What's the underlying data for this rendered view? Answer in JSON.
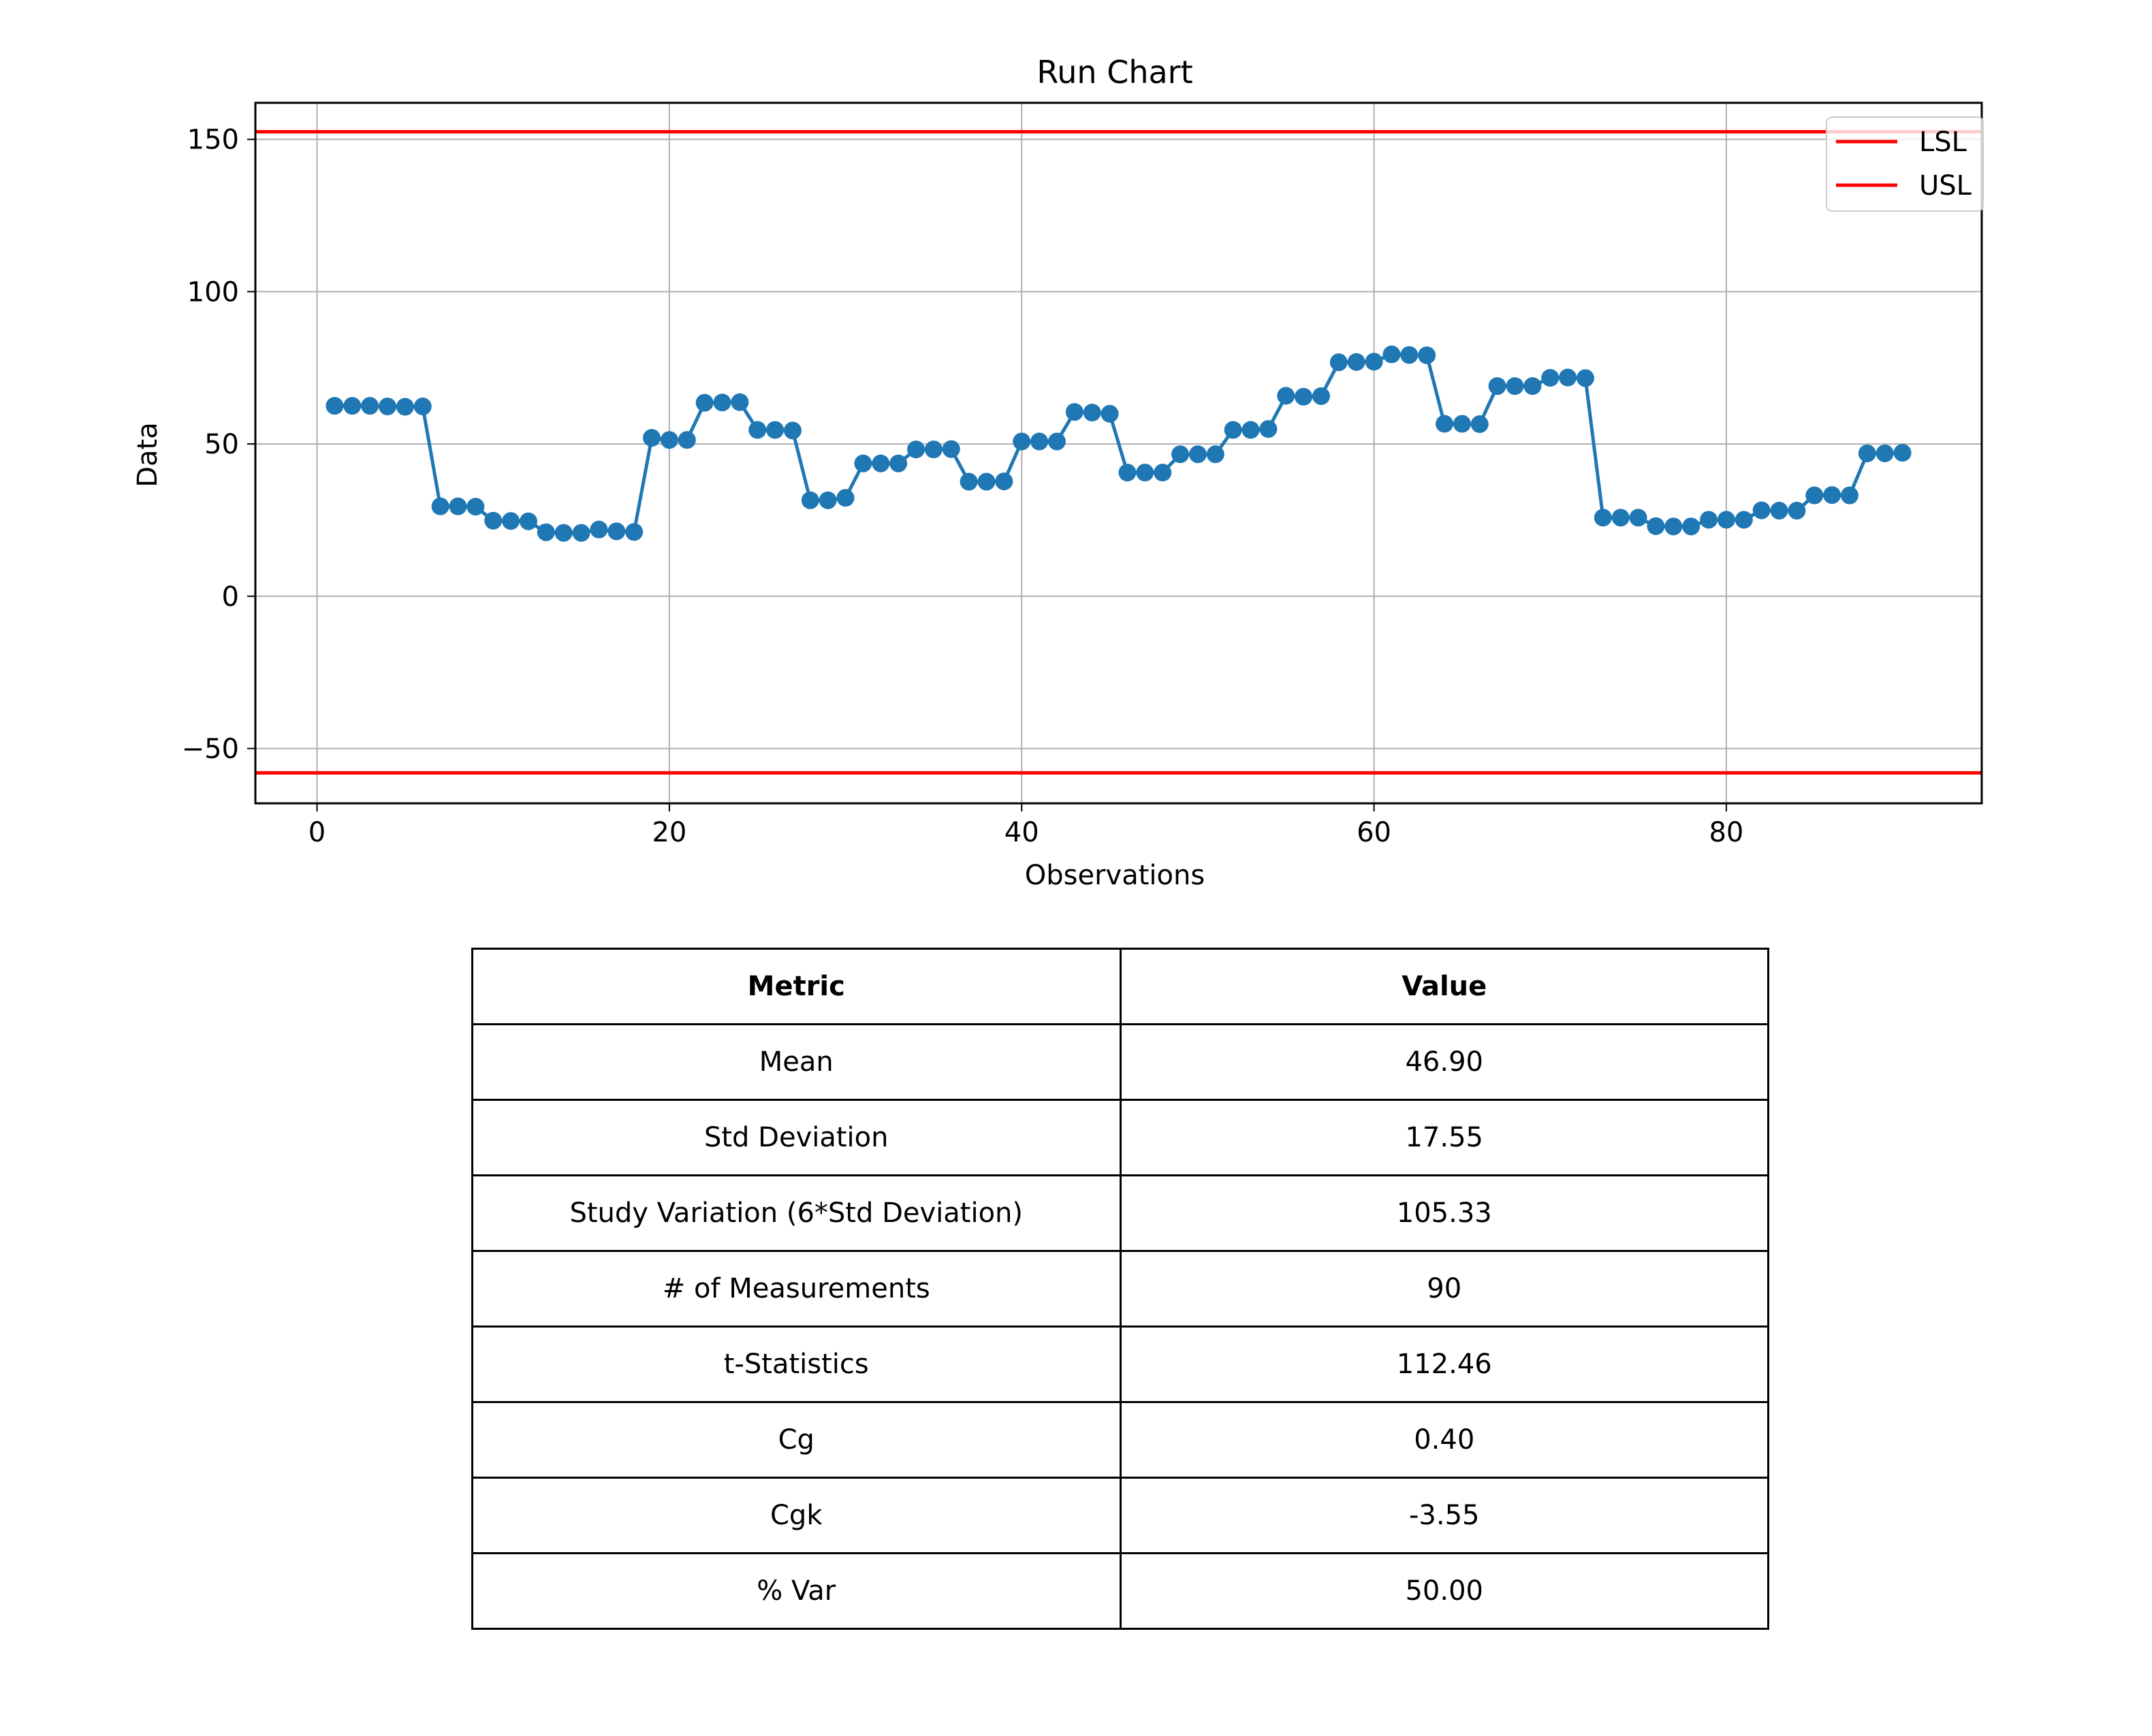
{
  "chart_data": {
    "type": "line",
    "title": "Run Chart",
    "xlabel": "Observations",
    "ylabel": "Data",
    "xlim": [
      -3.5,
      94.5
    ],
    "ylim": [
      -68,
      162
    ],
    "xticks": [
      0,
      20,
      40,
      60,
      80
    ],
    "yticks": [
      -50,
      0,
      50,
      100,
      150
    ],
    "ytick_labels": [
      "−50",
      "0",
      "50",
      "100",
      "150"
    ],
    "grid": true,
    "legend": {
      "position": "top-right",
      "entries": [
        "LSL",
        "USL"
      ]
    },
    "colors": {
      "series": "#1f77b4",
      "limits": "#ff0000"
    },
    "series": [
      {
        "marker": "circle",
        "x": [
          1,
          2,
          3,
          4,
          5,
          6,
          7,
          8,
          9,
          10,
          11,
          12,
          13,
          14,
          15,
          16,
          17,
          18,
          19,
          20,
          21,
          22,
          23,
          24,
          25,
          26,
          27,
          28,
          29,
          30,
          31,
          32,
          33,
          34,
          35,
          36,
          37,
          38,
          39,
          40,
          41,
          42,
          43,
          44,
          45,
          46,
          47,
          48,
          49,
          50,
          51,
          52,
          53,
          54,
          55,
          56,
          57,
          58,
          59,
          60,
          61,
          62,
          63,
          64,
          65,
          66,
          67,
          68,
          69,
          70,
          71,
          72,
          73,
          74,
          75,
          76,
          77,
          78,
          79,
          80,
          81,
          82,
          83,
          84,
          85,
          86,
          87,
          88,
          89,
          90
        ],
        "y": [
          62.5,
          62.5,
          62.5,
          62.3,
          62.2,
          62.3,
          29.5,
          29.5,
          29.4,
          24.8,
          24.7,
          24.6,
          21.0,
          20.8,
          20.8,
          21.9,
          21.3,
          21.1,
          52.0,
          51.3,
          51.3,
          63.5,
          63.6,
          63.7,
          54.6,
          54.6,
          54.4,
          31.5,
          31.5,
          32.3,
          43.6,
          43.6,
          43.6,
          48.2,
          48.2,
          48.3,
          37.6,
          37.6,
          37.7,
          50.8,
          50.8,
          50.8,
          60.5,
          60.3,
          59.9,
          40.6,
          40.6,
          40.6,
          46.6,
          46.6,
          46.6,
          54.6,
          54.6,
          54.9,
          65.8,
          65.5,
          65.7,
          76.8,
          76.9,
          77.0,
          79.4,
          79.2,
          79.1,
          56.6,
          56.6,
          56.5,
          69.0,
          69.0,
          69.0,
          71.7,
          71.8,
          71.6,
          25.8,
          25.8,
          25.8,
          23.0,
          22.9,
          22.9,
          25.1,
          25.1,
          25.1,
          28.2,
          28.1,
          28.1,
          33.1,
          33.2,
          33.1,
          46.9,
          46.9,
          47.1
        ]
      }
    ],
    "limits": [
      {
        "name": "LSL",
        "value": 152.5
      },
      {
        "name": "USL",
        "value": -58
      }
    ]
  },
  "table": {
    "headers": [
      "Metric",
      "Value"
    ],
    "rows": [
      [
        "Mean",
        "46.90"
      ],
      [
        "Std Deviation",
        "17.55"
      ],
      [
        "Study Variation (6*Std Deviation)",
        "105.33"
      ],
      [
        "# of Measurements",
        "90"
      ],
      [
        "t-Statistics",
        "112.46"
      ],
      [
        "Cg",
        "0.40"
      ],
      [
        "Cgk",
        "-3.55"
      ],
      [
        "% Var",
        "50.00"
      ]
    ]
  }
}
